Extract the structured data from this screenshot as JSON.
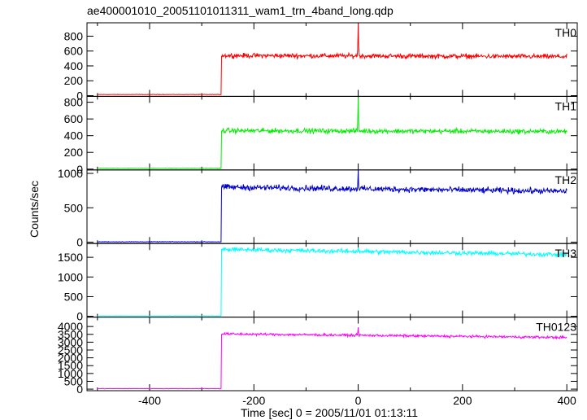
{
  "chart_data": {
    "type": "line",
    "title": "ae400001010_20051101011311_wam1_trn_4band_long.qdp",
    "xlabel": "Time [sec] 0 = 2005/11/01 01:13:11",
    "ylabel": "Counts/sec",
    "xlim": [
      -520,
      420
    ],
    "xticks": [
      -400,
      -200,
      0,
      200,
      400
    ],
    "grid": false,
    "legend": "none",
    "panels": [
      {
        "label": "TH0",
        "color": "#ff0000",
        "ylim": [
          -10,
          980
        ],
        "yticks": [
          0,
          200,
          400,
          600,
          800
        ],
        "series": {
          "x_start": -500,
          "x_step": 1,
          "x_onset": -262,
          "x_end": 400,
          "pre_level": 15,
          "pre_noise": 2,
          "post_level": 540,
          "post_noise": 22,
          "post_trend": -15,
          "spike_x": 0,
          "spike_y": 970
        }
      },
      {
        "label": "TH1",
        "color": "#00ee00",
        "ylim": [
          -10,
          870
        ],
        "yticks": [
          0,
          200,
          400,
          600,
          800
        ],
        "series": {
          "x_start": -500,
          "x_step": 1,
          "x_onset": -262,
          "x_end": 400,
          "pre_level": 10,
          "pre_noise": 2,
          "post_level": 460,
          "post_noise": 20,
          "post_trend": -10,
          "spike_x": 0,
          "spike_y": 860
        }
      },
      {
        "label": "TH2",
        "color": "#0000cc",
        "ylim": [
          -20,
          1050
        ],
        "yticks": [
          0,
          500,
          1000
        ],
        "series": {
          "x_start": -500,
          "x_step": 1,
          "x_onset": -262,
          "x_end": 400,
          "pre_level": 5,
          "pre_noise": 3,
          "post_level": 800,
          "post_noise": 30,
          "post_trend": -60,
          "spike_x": 0,
          "spike_y": 1050
        }
      },
      {
        "label": "TH3",
        "color": "#00ffff",
        "ylim": [
          -20,
          1850
        ],
        "yticks": [
          0,
          500,
          1000,
          1500
        ],
        "series": {
          "x_start": -500,
          "x_step": 1,
          "x_onset": -262,
          "x_end": 400,
          "pre_level": 10,
          "pre_noise": 3,
          "post_level": 1700,
          "post_noise": 40,
          "post_trend": -130,
          "spike_x": 0,
          "spike_y": 1750
        }
      },
      {
        "label": "TH0123",
        "color": "#ff00ff",
        "ylim": [
          -100,
          4600
        ],
        "yticks": [
          0,
          500,
          1000,
          1500,
          2000,
          2500,
          3000,
          3500,
          4000
        ],
        "series": {
          "x_start": -500,
          "x_step": 1,
          "x_onset": -262,
          "x_end": 400,
          "pre_level": 30,
          "pre_noise": 8,
          "post_level": 3530,
          "post_noise": 55,
          "post_trend": -230,
          "spike_x": 0,
          "spike_y": 3950
        }
      }
    ]
  }
}
